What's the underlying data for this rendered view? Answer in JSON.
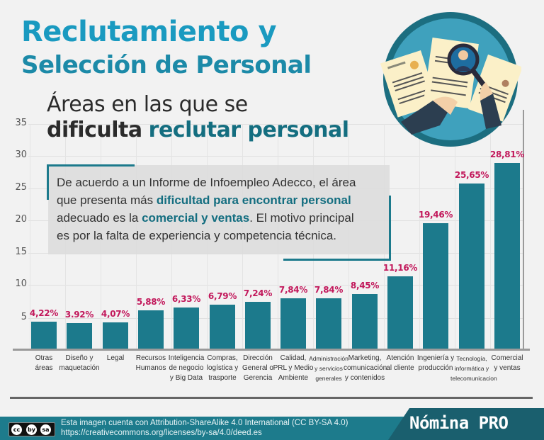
{
  "header": {
    "title_line1": "Reclutamiento y",
    "title_line2": "Selección de Personal",
    "subtitle_line1": "Áreas en las que se",
    "subtitle_line2_plain": "dificulta",
    "subtitle_line2_accent": "reclutar personal"
  },
  "infobox": {
    "line1": "De acuerdo a un Informe de Infoempleo Adecco, el área",
    "line2_plain": "que presenta más",
    "line2_highlight": "dificultad para encontrar personal",
    "line3_plain": "adecuado es la",
    "line3_highlight": "comercial y ventas",
    "line3_end": ".  El motivo principal",
    "line4": "es por la falta de experiencia y competencia técnica."
  },
  "colors": {
    "bar": "#1c7a8c",
    "value_label": "#c2185b",
    "title": "#1a9ac0",
    "accent": "#146e80",
    "footer": "#1d7b8c"
  },
  "chart_data": {
    "type": "bar",
    "title": "Áreas en las que se dificulta reclutar personal",
    "xlabel": "",
    "ylabel": "",
    "ylim": [
      0,
      35
    ],
    "yticks": [
      5,
      10,
      15,
      20,
      25,
      30,
      35
    ],
    "grid": true,
    "categories": [
      "Otras áreas",
      "Diseño y maquetación",
      "Legal",
      "Recursos Humanos",
      "Inteligencia de negocio y Big Data",
      "Compras, logística y trasporte",
      "Dirección General o Gerencia",
      "Calidad, PRL y Medio Ambiente",
      "Administración y servicios generales",
      "Marketing, comunicación y contenidos",
      "Atención al cliente",
      "Ingeniería y producción",
      "Tecnología, informática y telecomunicacion",
      "Comercial y ventas"
    ],
    "values": [
      4.22,
      3.92,
      4.07,
      5.88,
      6.33,
      6.79,
      7.24,
      7.84,
      7.84,
      8.45,
      11.16,
      19.46,
      25.65,
      28.81
    ],
    "value_labels": [
      "4,22%",
      "3.92%",
      "4,07%",
      "5,88%",
      "6,33%",
      "6,79%",
      "7,24%",
      "7,84%",
      "7,84%",
      "8,45%",
      "11,16%",
      "19,46%",
      "25,65%",
      "28,81%"
    ]
  },
  "axis": {
    "y_labels": [
      "35",
      "30",
      "25",
      "20",
      "15",
      "10",
      "5"
    ]
  },
  "category_lines": [
    [
      "Otras",
      "áreas"
    ],
    [
      "Diseño y",
      "maquetación"
    ],
    [
      "Legal"
    ],
    [
      "Recursos",
      "Humanos"
    ],
    [
      "Inteligencia",
      "de negocio",
      "y Big Data"
    ],
    [
      "Compras,",
      "logística y",
      "trasporte"
    ],
    [
      "Dirección",
      "General o",
      "Gerencia"
    ],
    [
      "Calidad,",
      "PRL y Medio",
      "Ambiente"
    ],
    [
      "Administración",
      "y servicios",
      "generales"
    ],
    [
      "Marketing,",
      "comunicación",
      "y contenidos"
    ],
    [
      "Atención",
      "al cliente"
    ],
    [
      "Ingeniería y",
      "producción"
    ],
    [
      "Tecnología,",
      "informática y",
      "telecomunicacion"
    ],
    [
      "Comercial",
      "y ventas"
    ]
  ],
  "footer": {
    "license_line1": "Esta imagen cuenta con Attribution-ShareAlike 4.0 International (CC BY-SA 4.0)",
    "license_line2": "https://creativecommons.org/licenses/by-sa/4.0/deed.es",
    "brand": "Nómina PRO",
    "cc_icons": [
      "cc",
      "by",
      "sa"
    ]
  }
}
